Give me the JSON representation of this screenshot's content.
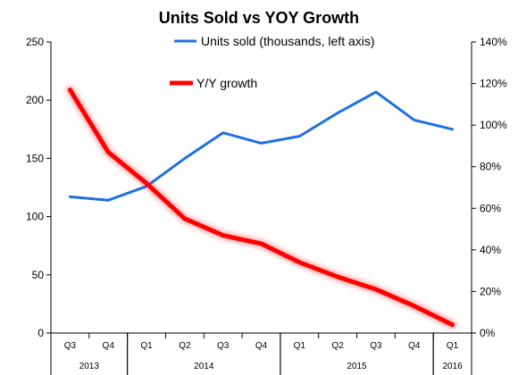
{
  "chart_data": {
    "type": "line",
    "title": "Units Sold vs YOY Growth",
    "categories": [
      "Q3",
      "Q4",
      "Q1",
      "Q2",
      "Q3",
      "Q4",
      "Q1",
      "Q2",
      "Q3",
      "Q4",
      "Q1"
    ],
    "years": [
      {
        "label": "2013",
        "start": 0,
        "end": 1
      },
      {
        "label": "2014",
        "start": 2,
        "end": 5
      },
      {
        "label": "2015",
        "start": 6,
        "end": 9
      },
      {
        "label": "2016",
        "start": 10,
        "end": 10
      }
    ],
    "series": [
      {
        "name": "Units sold (thousands, left axis)",
        "axis": "left",
        "color": "#1F6FE5",
        "values": [
          117,
          114,
          126,
          150,
          172,
          163,
          169,
          189,
          207,
          183,
          175
        ]
      },
      {
        "name": "Y/Y growth",
        "axis": "right",
        "color": "#FF0000",
        "values": [
          1.17,
          0.87,
          0.72,
          0.55,
          0.47,
          0.43,
          0.34,
          0.27,
          0.21,
          0.13,
          0.04
        ]
      }
    ],
    "left_axis": {
      "min": 0,
      "max": 250,
      "step": 50,
      "ticks": [
        "0",
        "50",
        "100",
        "150",
        "200",
        "250"
      ]
    },
    "right_axis": {
      "min": 0,
      "max": 1.4,
      "step": 0.2,
      "ticks": [
        "0%",
        "20%",
        "40%",
        "60%",
        "80%",
        "100%",
        "120%",
        "140%"
      ]
    },
    "grid": false,
    "legend_position": "top-center"
  }
}
